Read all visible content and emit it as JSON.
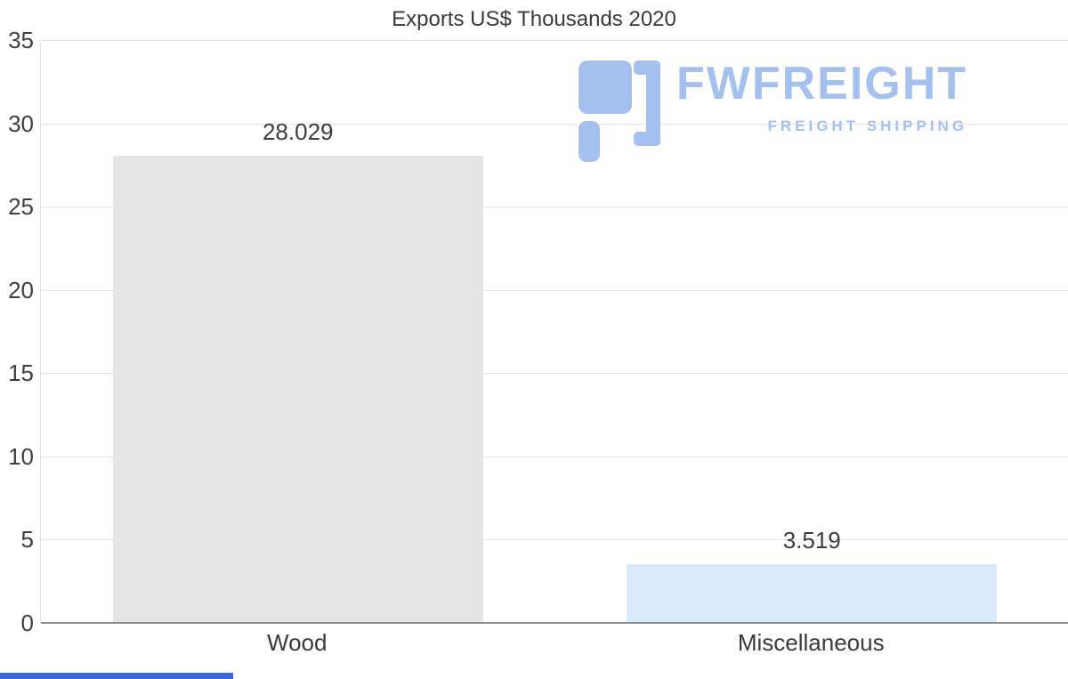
{
  "logo": {
    "brand": "FWFREIGHT",
    "tagline": "FREIGHT SHIPPING",
    "color": "#a3c0ef"
  },
  "footer": {
    "accent_color": "#3b66d9",
    "accent_width": 262
  },
  "chart_data": {
    "type": "bar",
    "title": "Exports US$ Thousands 2020",
    "categories": [
      "Wood",
      "Miscellaneous"
    ],
    "values": [
      28.029,
      3.519
    ],
    "value_labels": [
      "28.029",
      "3.519"
    ],
    "bar_colors": [
      "#e4e4e4",
      "#d9eafc"
    ],
    "xlabel": "",
    "ylabel": "",
    "ylim": [
      0,
      35
    ],
    "yticks": [
      0,
      5,
      10,
      15,
      20,
      25,
      30,
      35
    ],
    "grid": true,
    "legend": false
  }
}
